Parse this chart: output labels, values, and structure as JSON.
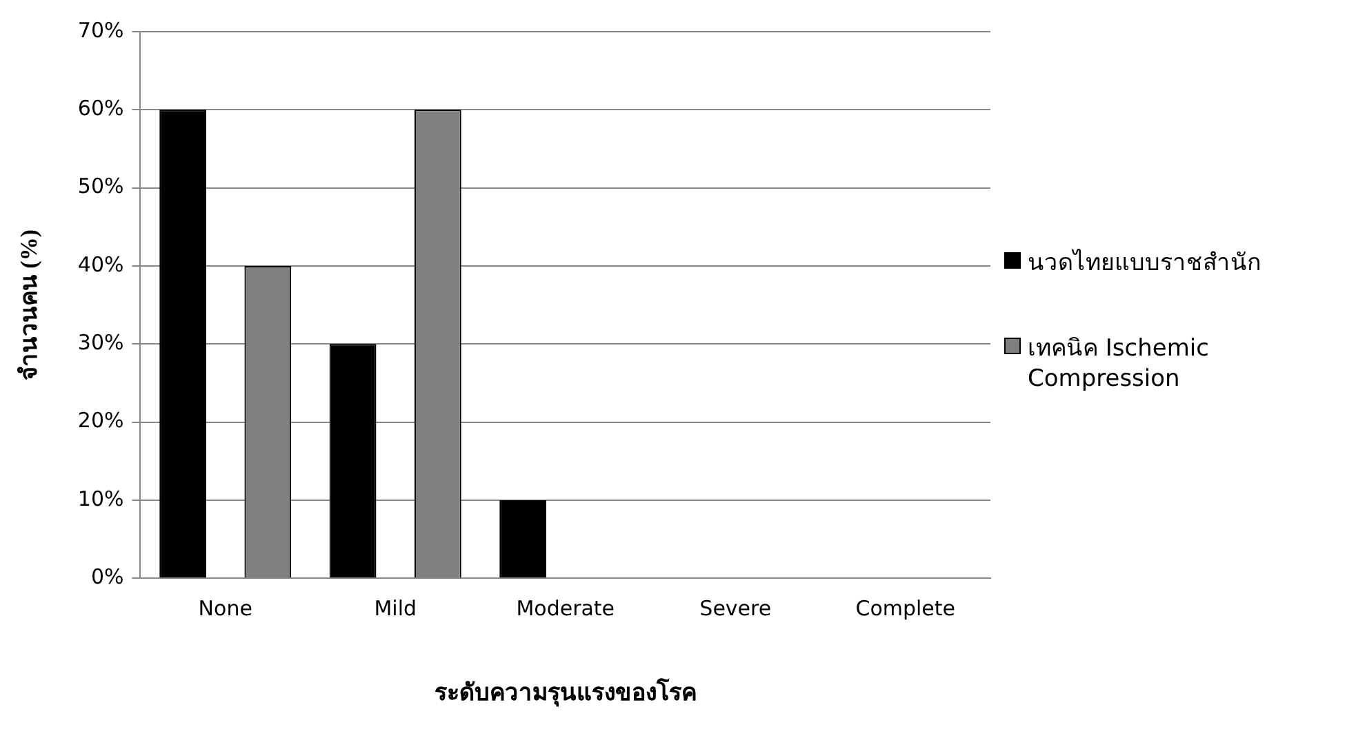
{
  "chart_data": {
    "type": "bar",
    "xlabel": "ระดับความรุนแรงของโรค",
    "ylabel": "จำนวนคน (%)",
    "categories": [
      "None",
      "Mild",
      "Moderate",
      "Severe",
      "Complete"
    ],
    "series": [
      {
        "name": "นวดไทยแบบราชสำนัก",
        "color": "#000000",
        "values": [
          60,
          30,
          10,
          0,
          0
        ]
      },
      {
        "name": "เทคนิค Ischemic Compression",
        "color": "#808080",
        "values": [
          40,
          60,
          0,
          0,
          0
        ]
      }
    ],
    "ylim": [
      0,
      70
    ],
    "yticks": [
      {
        "value": 0,
        "label": "0%"
      },
      {
        "value": 10,
        "label": "10%"
      },
      {
        "value": 20,
        "label": "20%"
      },
      {
        "value": 30,
        "label": "30%"
      },
      {
        "value": 40,
        "label": "40%"
      },
      {
        "value": 50,
        "label": "50%"
      },
      {
        "value": 60,
        "label": "60%"
      },
      {
        "value": 70,
        "label": "70%"
      }
    ],
    "grid": "y",
    "legend": "right"
  }
}
